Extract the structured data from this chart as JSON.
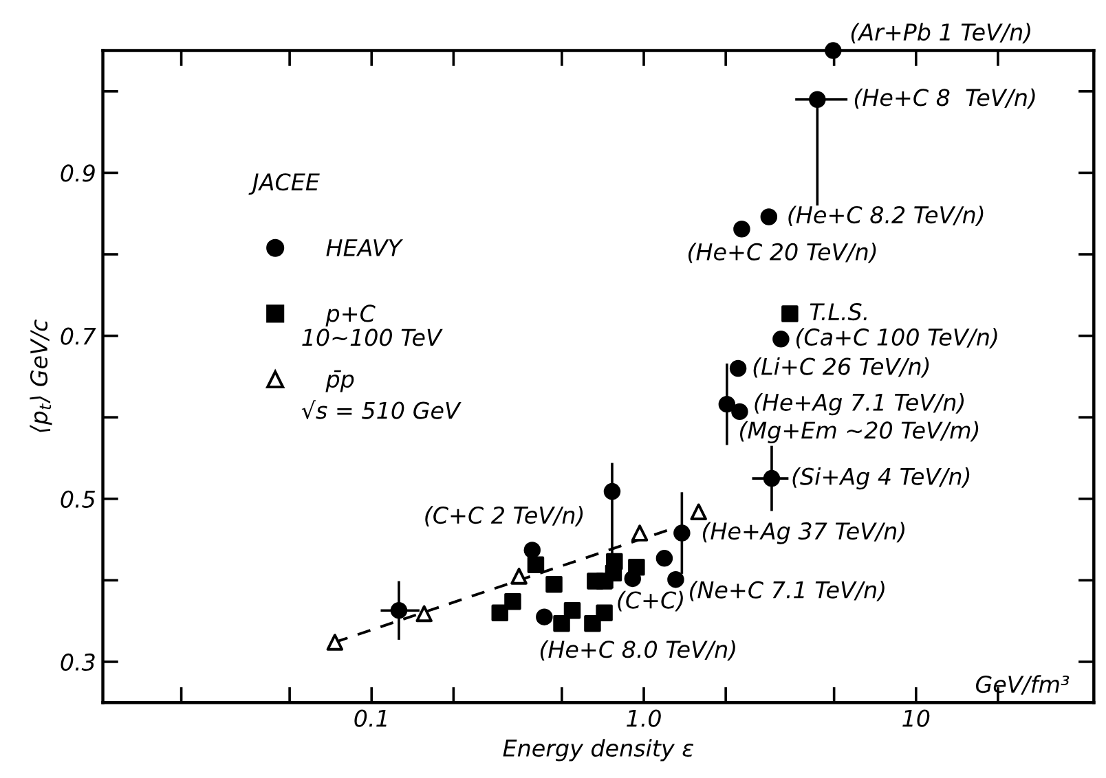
{
  "chart_data": {
    "type": "scatter",
    "xlabel": "Energy density ε",
    "ylabel": "⟨p$_{t}$⟩ GeV/c",
    "legend_title": "JACEE",
    "legend": "top left",
    "log": "x",
    "grid": false,
    "xlim": [
      0.0103,
      45
    ],
    "ylim": [
      0.25,
      1.05
    ],
    "xticks": [
      {
        "value": 0.02,
        "label": null
      },
      {
        "value": 0.05,
        "label": null
      },
      0.1,
      {
        "value": 0.2,
        "label": null
      },
      {
        "value": 0.5,
        "label": null
      },
      {
        "value": 1,
        "label": "1.0"
      },
      {
        "value": 2,
        "label": null
      },
      {
        "value": 5,
        "label": null
      },
      10,
      {
        "value": 20,
        "label": null
      }
    ],
    "yticks": [
      0.3,
      {
        "value": 0.4,
        "label": null
      },
      0.5,
      {
        "value": 0.6,
        "label": null
      },
      0.7,
      {
        "value": 0.8,
        "label": null
      },
      0.9,
      {
        "value": 1.0,
        "label": null
      }
    ],
    "series": [
      {
        "name": "HEAVY",
        "color": "#000000",
        "marker": "circle",
        "x": [
          4.96,
          4.34,
          2.88,
          2.29,
          3.19,
          2.22,
          2.02,
          2.25,
          2.95,
          1.38,
          0.765,
          0.389,
          1.19,
          1.31,
          0.91,
          0.431,
          0.126
        ],
        "values": [
          1.05,
          0.99,
          0.846,
          0.831,
          0.696,
          0.66,
          0.616,
          0.607,
          0.525,
          0.458,
          0.509,
          0.437,
          0.427,
          0.401,
          0.402,
          0.355,
          0.363
        ],
        "errors": [
          null,
          [
            0.86,
            0.99
          ],
          null,
          null,
          null,
          null,
          0.05,
          null,
          0.04,
          0.05,
          [
            0.39,
            0.544
          ],
          null,
          null,
          null,
          null,
          null,
          0.036
        ],
        "xerrors": [
          null,
          [
            3.6,
            5.6
          ],
          null,
          null,
          null,
          null,
          null,
          null,
          [
            2.5,
            3.4
          ],
          null,
          null,
          null,
          null,
          null,
          null,
          null,
          [
            0.108,
            0.15
          ]
        ]
      },
      {
        "name": "p+C",
        "color": "#000000",
        "marker": "square",
        "x": [
          0.296,
          0.33,
          0.401,
          0.468,
          0.499,
          0.546,
          0.663,
          0.648,
          0.716,
          0.78,
          0.774,
          0.94,
          0.716,
          3.44
        ],
        "values": [
          0.36,
          0.374,
          0.419,
          0.395,
          0.347,
          0.363,
          0.399,
          0.347,
          0.36,
          0.423,
          0.409,
          0.416,
          0.399,
          0.727
        ]
      },
      {
        "name": "p̄p",
        "color": "#000000",
        "marker": "triangle",
        "x": [
          0.0733,
          0.156,
          0.348,
          0.966,
          1.59
        ],
        "values": [
          0.324,
          0.359,
          0.405,
          0.458,
          0.484
        ]
      },
      {
        "type": "line",
        "color": "#000000",
        "line_style": "dashed",
        "marker": "none",
        "x": [
          0.0733,
          1.29
        ],
        "values": [
          0.324,
          0.464
        ]
      }
    ],
    "annotations": [
      "10~100 TeV",
      "√s = 510 GeV",
      "GeV/fm³",
      {
        "text": "(Ar+Pb 1 TeV/n)",
        "x": 4.96,
        "y": 1.05
      },
      {
        "text": "(He+C 8  TeV/n)",
        "x": 4.34,
        "y": 0.99
      },
      {
        "text": "(He+C 8.2 TeV/n)",
        "x": 2.88,
        "y": 0.846
      },
      {
        "text": "(He+C 20 TeV/n)",
        "x": 2.29,
        "y": 0.831
      },
      {
        "text": "T.L.S.",
        "x": 3.44,
        "y": 0.727
      },
      {
        "text": "(Ca+C 100 TeV/n)",
        "x": 3.19,
        "y": 0.696
      },
      {
        "text": "(Li+C 26 TeV/n)",
        "x": 2.22,
        "y": 0.66
      },
      {
        "text": "(He+Ag 7.1 TeV/n)",
        "x": 2.02,
        "y": 0.616
      },
      {
        "text": "(Mg+Em ~20 TeV/m)",
        "x": 2.25,
        "y": 0.607
      },
      {
        "text": "(Si+Ag 4 TeV/n)",
        "x": 2.95,
        "y": 0.525
      },
      {
        "text": "(He+Ag 37 TeV/n)",
        "x": 1.38,
        "y": 0.458
      },
      {
        "text": "(C+C 2 TeV/n)",
        "x": 0.389,
        "y": 0.437
      },
      {
        "text": "(C+C)",
        "x": 0.91,
        "y": 0.402
      },
      {
        "text": "(Ne+C 7.1 TeV/n)",
        "x": 1.31,
        "y": 0.401
      },
      {
        "text": "(He+C 8.0 TeV/n)",
        "x": 0.431,
        "y": 0.355
      }
    ]
  }
}
